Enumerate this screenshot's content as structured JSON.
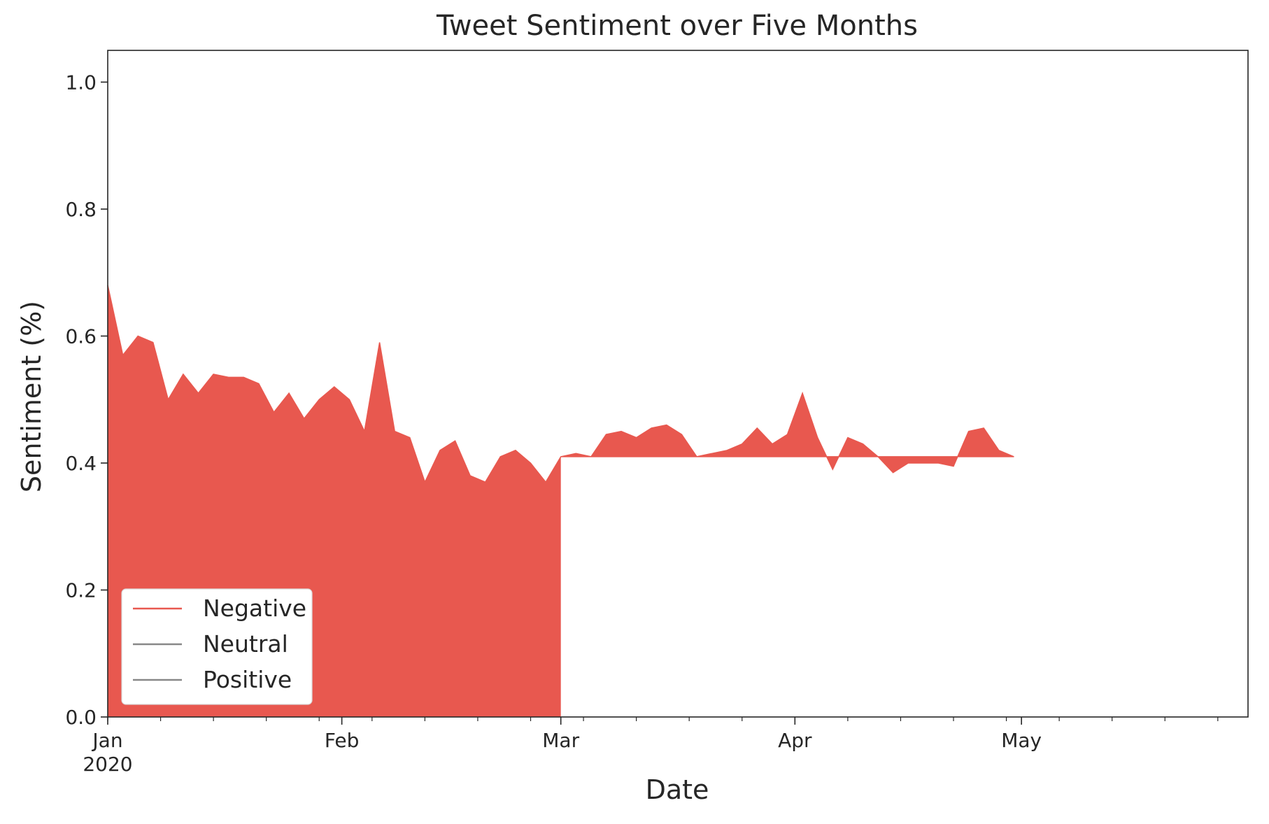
{
  "chart_data": {
    "type": "area",
    "stacked": true,
    "title": "Tweet Sentiment over Five Months",
    "xlabel": "Date",
    "ylabel": "Sentiment (%)",
    "x_start": "2020-01-01",
    "x_end": "2020-05-31",
    "ylim": [
      0.0,
      1.05
    ],
    "y_ticks": [
      "0.0",
      "0.2",
      "0.4",
      "0.6",
      "0.8",
      "1.0"
    ],
    "x_ticks": [
      {
        "date": "2020-01-01",
        "label": "Jan",
        "sublabel": "2020"
      },
      {
        "date": "2020-02-01",
        "label": "Feb",
        "sublabel": ""
      },
      {
        "date": "2020-03-01",
        "label": "Mar",
        "sublabel": ""
      },
      {
        "date": "2020-04-01",
        "label": "Apr",
        "sublabel": ""
      },
      {
        "date": "2020-05-01",
        "label": "May",
        "sublabel": ""
      }
    ],
    "legend": {
      "position": "lower-left",
      "entries": [
        "Negative",
        "Neutral",
        "Positive"
      ]
    },
    "series": [
      {
        "name": "Negative",
        "color": "#e8584f",
        "points": [
          [
            "2020-01-01",
            0.68
          ],
          [
            "2020-01-03",
            0.57
          ],
          [
            "2020-01-05",
            0.6
          ],
          [
            "2020-01-07",
            0.59
          ],
          [
            "2020-01-09",
            0.5
          ],
          [
            "2020-01-11",
            0.54
          ],
          [
            "2020-01-13",
            0.51
          ],
          [
            "2020-01-15",
            0.54
          ],
          [
            "2020-01-17",
            0.535
          ],
          [
            "2020-01-19",
            0.535
          ],
          [
            "2020-01-21",
            0.525
          ],
          [
            "2020-01-23",
            0.48
          ],
          [
            "2020-01-25",
            0.51
          ],
          [
            "2020-01-27",
            0.47
          ],
          [
            "2020-01-29",
            0.5
          ],
          [
            "2020-01-31",
            0.52
          ],
          [
            "2020-02-02",
            0.5
          ],
          [
            "2020-02-04",
            0.45
          ],
          [
            "2020-02-06",
            0.59
          ],
          [
            "2020-02-08",
            0.45
          ],
          [
            "2020-02-10",
            0.44
          ],
          [
            "2020-02-12",
            0.37
          ],
          [
            "2020-02-14",
            0.42
          ],
          [
            "2020-02-16",
            0.435
          ],
          [
            "2020-02-18",
            0.38
          ],
          [
            "2020-02-20",
            0.37
          ],
          [
            "2020-02-22",
            0.41
          ],
          [
            "2020-02-24",
            0.42
          ],
          [
            "2020-02-26",
            0.4
          ],
          [
            "2020-02-28",
            0.37
          ],
          [
            "2020-03-01",
            0.41
          ],
          [
            "2020-03-03",
            0.415
          ],
          [
            "2020-03-05",
            0.41
          ],
          [
            "2020-03-07",
            0.445
          ],
          [
            "2020-03-09",
            0.45
          ],
          [
            "2020-03-11",
            0.44
          ],
          [
            "2020-03-13",
            0.455
          ],
          [
            "2020-03-15",
            0.46
          ],
          [
            "2020-03-17",
            0.445
          ],
          [
            "2020-03-19",
            0.41
          ],
          [
            "2020-03-21",
            0.415
          ],
          [
            "2020-03-23",
            0.42
          ],
          [
            "2020-03-25",
            0.43
          ],
          [
            "2020-03-27",
            0.455
          ],
          [
            "2020-03-29",
            0.43
          ],
          [
            "2020-03-31",
            0.445
          ],
          [
            "2020-04-02",
            0.51
          ],
          [
            "2020-04-04",
            0.44
          ],
          [
            "2020-04-06",
            0.39
          ],
          [
            "2020-04-08",
            0.44
          ],
          [
            "2020-04-10",
            0.43
          ],
          [
            "2020-04-12",
            0.41
          ],
          [
            "2020-04-14",
            0.385
          ],
          [
            "2020-04-16",
            0.4
          ],
          [
            "2020-04-18",
            0.4
          ],
          [
            "2020-04-20",
            0.4
          ],
          [
            "2020-04-22",
            0.395
          ],
          [
            "2020-04-24",
            0.45
          ],
          [
            "2020-04-26",
            0.455
          ],
          [
            "2020-04-28",
            0.42
          ],
          [
            "2020-04-30",
            0.41
          ],
          [
            "2020-02-30",
            0.41
          ]
        ]
      }
    ]
  }
}
